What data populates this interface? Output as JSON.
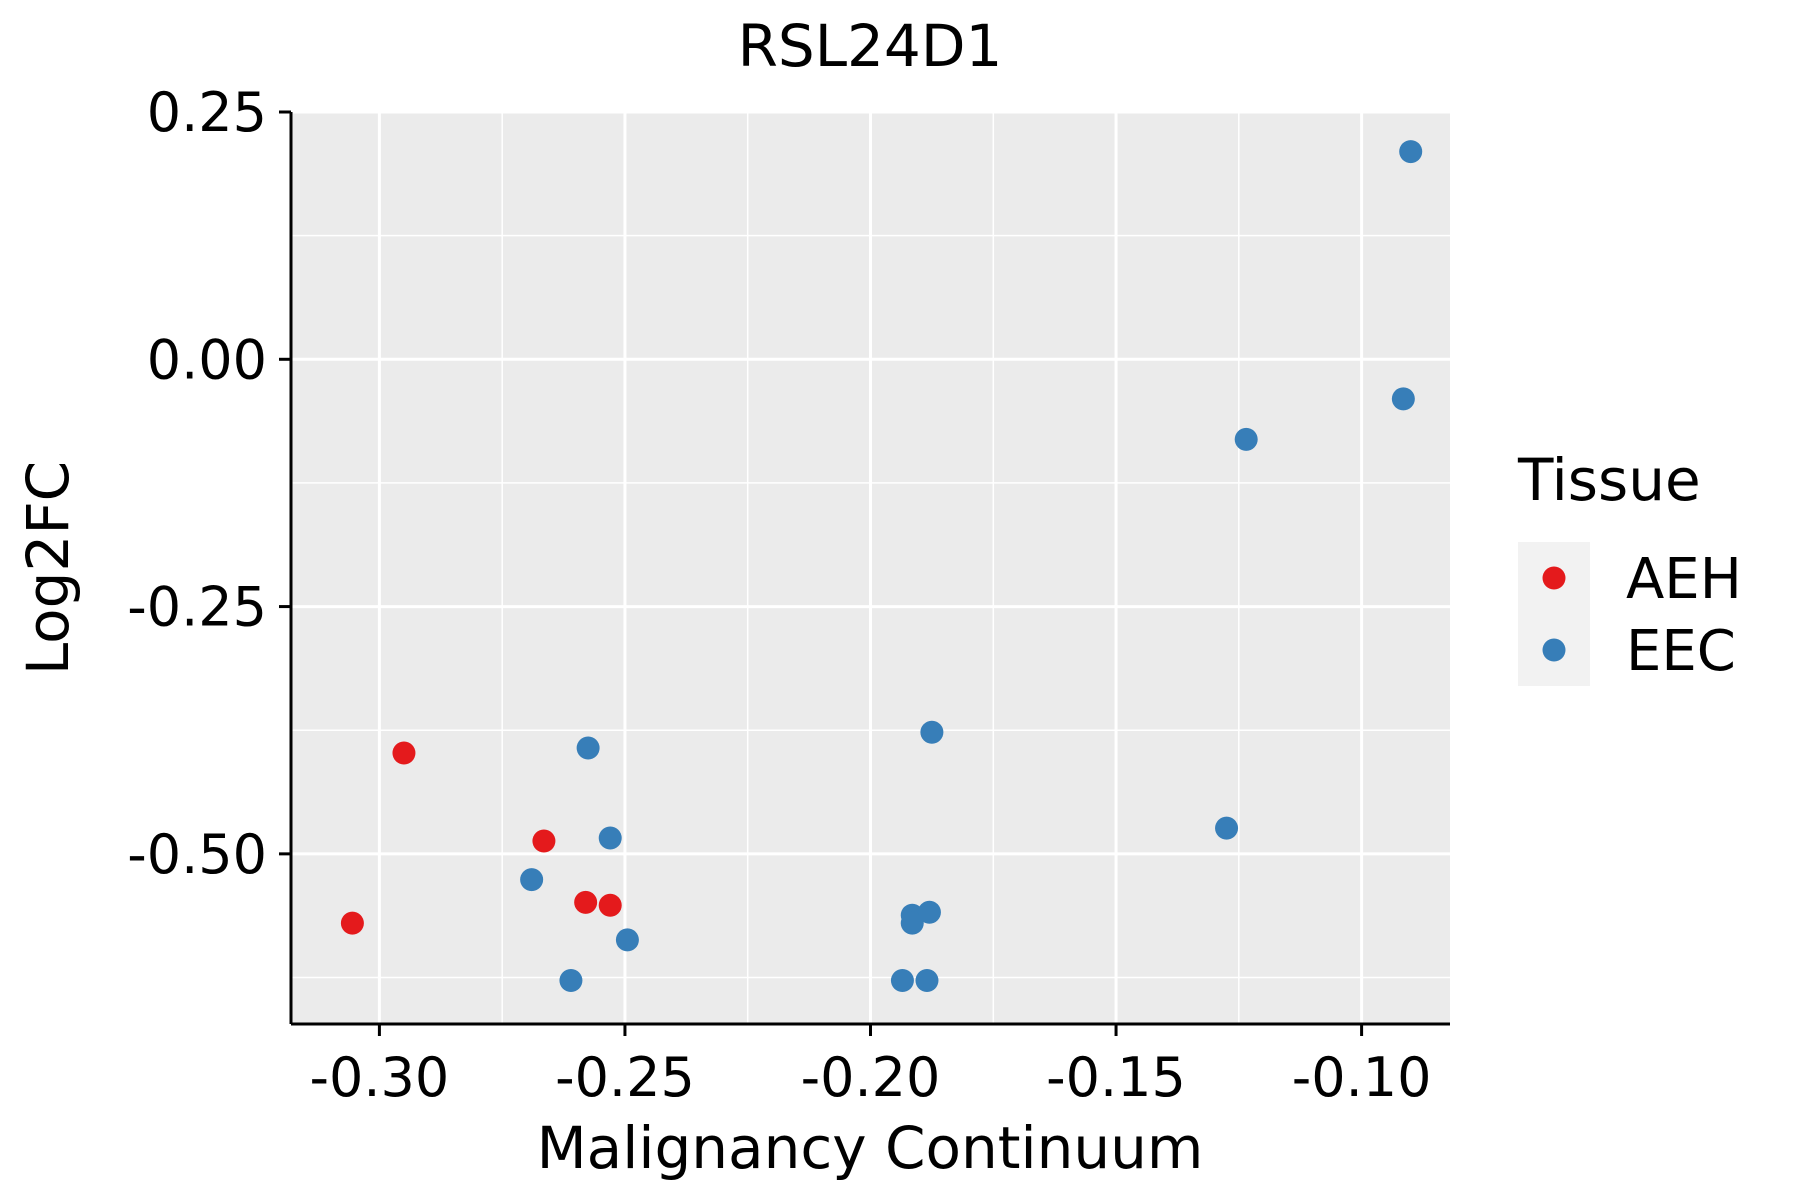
{
  "chart_data": {
    "type": "scatter",
    "title": "RSL24D1",
    "xlabel": "Malignancy Continuum",
    "ylabel": "Log2FC",
    "xlim": [
      -0.318,
      -0.082
    ],
    "ylim": [
      -0.672,
      0.25
    ],
    "x_ticks": [
      -0.3,
      -0.25,
      -0.2,
      -0.15,
      -0.1
    ],
    "x_tick_labels": [
      "-0.30",
      "-0.25",
      "-0.20",
      "-0.15",
      "-0.10"
    ],
    "y_ticks": [
      0.25,
      0.0,
      -0.25,
      -0.5
    ],
    "y_tick_labels": [
      "0.25",
      "0.00",
      "-0.25",
      "-0.50"
    ],
    "grid": true,
    "legend": {
      "title": "Tissue",
      "position": "right",
      "entries": [
        {
          "label": "AEH",
          "color": "#e41a1c"
        },
        {
          "label": "EEC",
          "color": "#377eb8"
        }
      ]
    },
    "series": [
      {
        "name": "AEH",
        "color": "#e41a1c",
        "points": [
          {
            "x": -0.3055,
            "y": -0.57
          },
          {
            "x": -0.295,
            "y": -0.398
          },
          {
            "x": -0.2665,
            "y": -0.487
          },
          {
            "x": -0.258,
            "y": -0.549
          },
          {
            "x": -0.253,
            "y": -0.552
          }
        ]
      },
      {
        "name": "EEC",
        "color": "#377eb8",
        "points": [
          {
            "x": -0.269,
            "y": -0.526
          },
          {
            "x": -0.261,
            "y": -0.628
          },
          {
            "x": -0.2575,
            "y": -0.393
          },
          {
            "x": -0.253,
            "y": -0.484
          },
          {
            "x": -0.2495,
            "y": -0.587
          },
          {
            "x": -0.1935,
            "y": -0.628
          },
          {
            "x": -0.1915,
            "y": -0.562
          },
          {
            "x": -0.1915,
            "y": -0.57
          },
          {
            "x": -0.1885,
            "y": -0.628
          },
          {
            "x": -0.188,
            "y": -0.559
          },
          {
            "x": -0.1875,
            "y": -0.377
          },
          {
            "x": -0.1275,
            "y": -0.474
          },
          {
            "x": -0.1235,
            "y": -0.081
          },
          {
            "x": -0.0915,
            "y": -0.04
          },
          {
            "x": -0.09,
            "y": 0.21
          }
        ]
      }
    ]
  }
}
